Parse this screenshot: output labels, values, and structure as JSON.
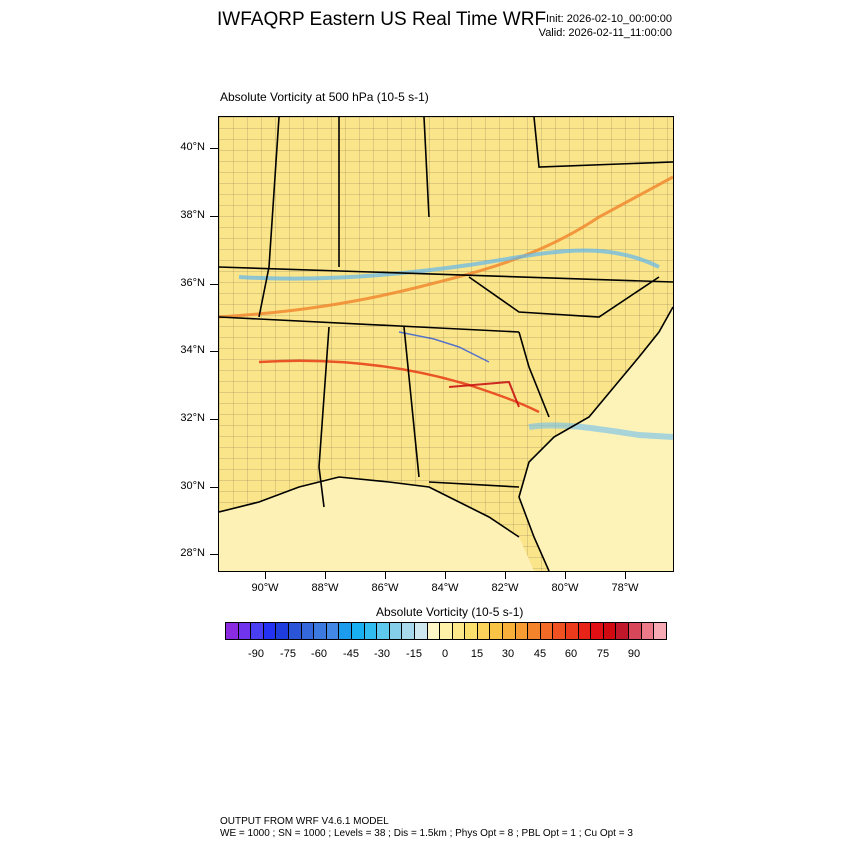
{
  "header": {
    "title": "IWFAQRP Eastern US Real Time WRF",
    "init": "Init: 2026-02-10_00:00:00",
    "valid": "Valid: 2026-02-11_11:00:00"
  },
  "plot": {
    "field_title": "Absolute Vorticity at 500 hPa   (10-5 s-1)",
    "lat_labels": [
      "40°N",
      "38°N",
      "36°N",
      "34°N",
      "32°N",
      "30°N",
      "28°N"
    ],
    "lon_labels": [
      "90°W",
      "88°W",
      "86°W",
      "84°W",
      "82°W",
      "80°W",
      "78°W"
    ],
    "background_color": "#fbe58a"
  },
  "colorbar": {
    "title": "Absolute Vorticity  (10-5 s-1)",
    "labels": [
      "-90",
      "-75",
      "-60",
      "-45",
      "-30",
      "-15",
      "0",
      "15",
      "30",
      "45",
      "60",
      "75",
      "90"
    ],
    "colors": [
      "#8a2be2",
      "#6f34ec",
      "#4a3ef2",
      "#2432f4",
      "#1e3ddc",
      "#2a55d8",
      "#3467dc",
      "#3c7ae0",
      "#4388e4",
      "#1b9cec",
      "#18b0f0",
      "#30bcef",
      "#5fc8ee",
      "#86cfeb",
      "#a8d8ec",
      "#cfe8f0",
      "#fff7c8",
      "#fef2a8",
      "#fde98a",
      "#fce06e",
      "#fbd35a",
      "#f9c346",
      "#f8b03a",
      "#f69c32",
      "#f4842c",
      "#f26a26",
      "#ef5120",
      "#ec3a1c",
      "#e82418",
      "#e00f14",
      "#d10a12",
      "#c0182a",
      "#d8465a",
      "#ec7a88",
      "#f7aab3"
    ]
  },
  "footer": {
    "line1": "OUTPUT FROM WRF V4.6.1 MODEL",
    "line2": "WE = 1000 ; SN = 1000 ; Levels = 38 ; Dis = 1.5km ; Phys Opt = 8 ; PBL Opt = 1 ; Cu Opt = 3"
  }
}
